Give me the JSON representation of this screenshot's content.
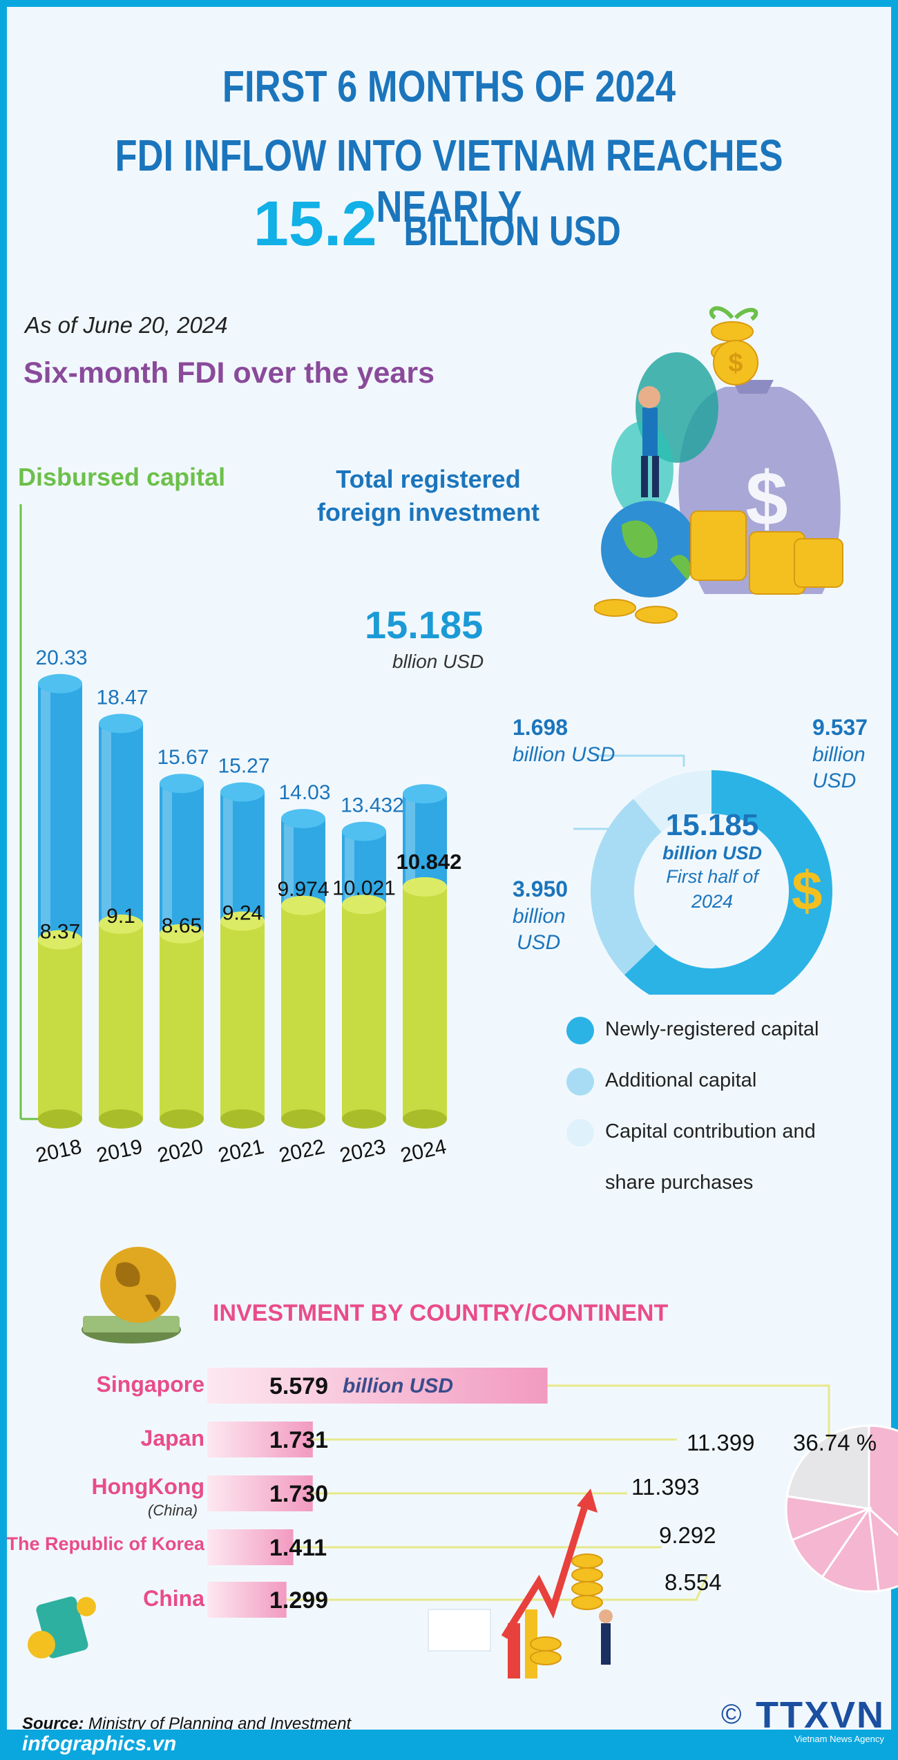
{
  "header": {
    "line1": "FIRST 6 MONTHS OF 2024",
    "line2": "FDI INFLOW INTO VIETNAM REACHES NEARLY",
    "highlight": "15.2",
    "unit": "BILLION USD"
  },
  "date": "As of June 20, 2024",
  "subtitle": "Six-month FDI over the years",
  "chart_data": [
    {
      "type": "bar",
      "categories": [
        "2018",
        "2019",
        "2020",
        "2021",
        "2022",
        "2023",
        "2024"
      ],
      "series": [
        {
          "name": "Total registered foreign investment",
          "values": [
            20.33,
            18.47,
            15.67,
            15.27,
            14.03,
            13.432,
            15.185
          ],
          "color": "#2fa8e4"
        },
        {
          "name": "Disbursed capital",
          "values": [
            8.37,
            9.1,
            8.65,
            9.24,
            9.974,
            10.021,
            10.842
          ],
          "color": "#c7dc42"
        }
      ],
      "value_labels_total": [
        "20.33",
        "18.47",
        "15.67",
        "15.27",
        "14.03",
        "13.432",
        "15.185"
      ],
      "value_labels_disbursed": [
        "8.37",
        "9.1",
        "8.65",
        "9.24",
        "9.974",
        "10.021",
        "10.842"
      ],
      "highlight_total": "15.185",
      "highlight_total_unit": "bllion USD"
    },
    {
      "type": "pie",
      "labels": [
        "Newly-registered capital",
        "Additional capital",
        "Capital contribution and share purchases"
      ],
      "values": [
        9.537,
        3.95,
        1.698
      ],
      "colors": [
        "#2bb3e6",
        "#a8dcf4",
        "#dff1fb"
      ],
      "center_value": "15.185",
      "center_unit": "billion USD",
      "center_note": "First half of 2024",
      "value_labels": [
        "9.537",
        "3.950",
        "1.698"
      ],
      "unit_label": "billion USD"
    },
    {
      "type": "bar",
      "title": "INVESTMENT BY COUNTRY/CONTINENT",
      "categories": [
        "Singapore",
        "Japan",
        "HongKong",
        "The Republic of Korea",
        "China"
      ],
      "values": [
        5.579,
        1.731,
        1.73,
        1.411,
        1.299
      ],
      "value_labels": [
        "5.579",
        "1.731",
        "1.730",
        "1.411",
        "1.299"
      ],
      "unit_label": "billion USD",
      "subcategory_note": "(China)"
    },
    {
      "type": "pie",
      "values": [
        5.579,
        1.731,
        1.73,
        1.411,
        1.299,
        3.435
      ],
      "colors": [
        "#f4b6d0",
        "#f4b6d0",
        "#f4b6d0",
        "#f4b6d0",
        "#f4b6d0",
        "#e6e6e8"
      ],
      "share_label": "36.74 %",
      "labels_right": [
        "11.399",
        "11.393",
        "9.292",
        "8.554"
      ]
    }
  ],
  "legend": {
    "disbursed": "Disbursed capital",
    "total_line1": "Total registered",
    "total_line2": "foreign investment"
  },
  "donut_legend": [
    "Newly-registered capital",
    "Additional capital",
    "Capital contribution and",
    "share purchases"
  ],
  "donut_units": {
    "billion": "billion",
    "usd": "USD"
  },
  "source_label": "Source:",
  "source_text": "Ministry of Planning and Investment",
  "site": "infographics.vn",
  "logo": "TTXVN",
  "logo_sub": "Vietnam News Agency",
  "copyright": "©"
}
